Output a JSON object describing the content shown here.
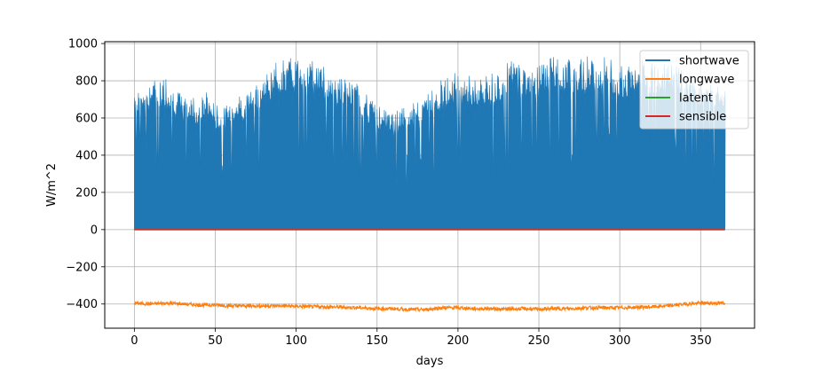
{
  "chart_data": {
    "type": "line",
    "xlabel": "days",
    "ylabel": "W/m^2",
    "xlim": [
      -18.3,
      383.3
    ],
    "ylim": [
      -530,
      1010
    ],
    "xticks": [
      0,
      50,
      100,
      150,
      200,
      250,
      300,
      350
    ],
    "yticks": [
      -400,
      -200,
      0,
      200,
      400,
      600,
      800,
      1000
    ],
    "grid": true,
    "legend_position": "upper right",
    "series": [
      {
        "name": "shortwave",
        "color": "#1f77b4",
        "render": "daily-diurnal-fill",
        "days": [
          0,
          5,
          10,
          15,
          20,
          25,
          30,
          35,
          40,
          45,
          50,
          55,
          60,
          65,
          70,
          75,
          80,
          85,
          90,
          95,
          100,
          105,
          110,
          115,
          120,
          125,
          130,
          135,
          140,
          145,
          150,
          155,
          160,
          165,
          170,
          175,
          180,
          185,
          190,
          195,
          200,
          205,
          210,
          215,
          220,
          225,
          230,
          235,
          240,
          245,
          250,
          255,
          260,
          265,
          270,
          275,
          280,
          285,
          290,
          295,
          300,
          305,
          310,
          315,
          320,
          325,
          330,
          335,
          340,
          345,
          350,
          355,
          360,
          365
        ],
        "daily_peak": [
          760,
          780,
          800,
          790,
          820,
          760,
          700,
          720,
          680,
          740,
          660,
          640,
          700,
          720,
          740,
          780,
          820,
          860,
          900,
          900,
          920,
          930,
          900,
          880,
          850,
          820,
          800,
          780,
          760,
          700,
          660,
          640,
          620,
          640,
          660,
          680,
          720,
          760,
          800,
          820,
          840,
          820,
          800,
          800,
          820,
          840,
          880,
          900,
          880,
          860,
          880,
          900,
          930,
          920,
          900,
          900,
          920,
          930,
          920,
          900,
          880,
          860,
          880,
          900,
          880,
          860,
          880,
          860,
          840,
          820,
          800,
          780,
          760,
          760
        ],
        "daily_min_baseline": 0
      },
      {
        "name": "longwave",
        "color": "#ff7f0e",
        "days": [
          0,
          10,
          20,
          30,
          40,
          50,
          60,
          70,
          80,
          90,
          100,
          110,
          120,
          130,
          140,
          150,
          160,
          170,
          180,
          190,
          200,
          210,
          220,
          230,
          240,
          250,
          260,
          270,
          280,
          290,
          300,
          310,
          320,
          330,
          340,
          350,
          360,
          365
        ],
        "values": [
          -395,
          -400,
          -395,
          -400,
          -405,
          -405,
          -410,
          -410,
          -410,
          -410,
          -412,
          -415,
          -415,
          -418,
          -420,
          -425,
          -425,
          -430,
          -430,
          -420,
          -420,
          -425,
          -425,
          -428,
          -425,
          -428,
          -425,
          -425,
          -420,
          -420,
          -420,
          -418,
          -415,
          -410,
          -400,
          -395,
          -395,
          -395
        ]
      },
      {
        "name": "latent",
        "color": "#2ca02c",
        "days": [
          0,
          365
        ],
        "values": [
          0,
          0
        ]
      },
      {
        "name": "sensible",
        "color": "#d62728",
        "days": [
          0,
          365
        ],
        "values": [
          0,
          0
        ]
      }
    ]
  }
}
